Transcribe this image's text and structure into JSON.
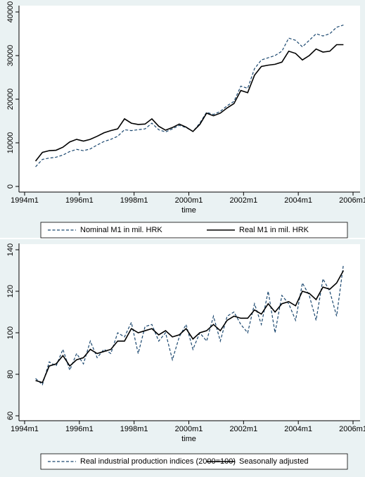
{
  "chart_data": [
    {
      "type": "line",
      "x_label": "time",
      "x": [
        1994.4,
        1994.65,
        1994.9,
        1995.15,
        1995.4,
        1995.65,
        1995.9,
        1996.15,
        1996.4,
        1996.65,
        1996.9,
        1997.15,
        1997.4,
        1997.65,
        1997.9,
        1998.15,
        1998.4,
        1998.65,
        1998.9,
        1999.15,
        1999.4,
        1999.65,
        1999.9,
        2000.15,
        2000.4,
        2000.65,
        2000.9,
        2001.15,
        2001.4,
        2001.65,
        2001.9,
        2002.15,
        2002.4,
        2002.65,
        2002.9,
        2003.15,
        2003.4,
        2003.65,
        2003.9,
        2004.15,
        2004.4,
        2004.65,
        2004.9,
        2005.15,
        2005.4,
        2005.65
      ],
      "series": [
        {
          "name": "Nominal M1 in mil. HRK",
          "color": "#1a476f",
          "dashed": true,
          "values": [
            4500,
            6200,
            6500,
            6700,
            7200,
            8000,
            8500,
            8200,
            8600,
            9500,
            10300,
            10800,
            11500,
            13000,
            12800,
            13000,
            13200,
            14500,
            13000,
            12500,
            13200,
            14000,
            13500,
            12600,
            14500,
            17000,
            16500,
            17200,
            18500,
            19500,
            23000,
            22500,
            27000,
            29000,
            29500,
            30000,
            31000,
            34000,
            33500,
            32000,
            33500,
            35000,
            34500,
            35000,
            36500,
            37000
          ]
        },
        {
          "name": "Real M1 in mil. HRK",
          "color": "#000000",
          "dashed": false,
          "values": [
            5800,
            7800,
            8200,
            8300,
            9000,
            10200,
            10800,
            10400,
            10800,
            11500,
            12300,
            12800,
            13200,
            15500,
            14500,
            14200,
            14300,
            15500,
            13800,
            12900,
            13500,
            14300,
            13600,
            12600,
            14200,
            16800,
            16200,
            16800,
            18000,
            19000,
            22000,
            21500,
            25500,
            27500,
            27800,
            28000,
            28500,
            31000,
            30500,
            29000,
            30000,
            31500,
            30800,
            31000,
            32500,
            32500
          ]
        }
      ],
      "xlim": [
        1994,
        2006
      ],
      "xticks": [
        {
          "value": 1994,
          "label": "1994m1"
        },
        {
          "value": 1996,
          "label": "1996m1"
        },
        {
          "value": 1998,
          "label": "1998m1"
        },
        {
          "value": 2000,
          "label": "2000m1"
        },
        {
          "value": 2002,
          "label": "2002m1"
        },
        {
          "value": 2004,
          "label": "2004m1"
        },
        {
          "value": 2006,
          "label": "2006m1"
        }
      ],
      "ylim": [
        0,
        40000
      ],
      "yticks": [
        0,
        10000,
        20000,
        30000,
        40000
      ]
    },
    {
      "type": "line",
      "x_label": "time",
      "x": [
        1994.4,
        1994.65,
        1994.9,
        1995.15,
        1995.4,
        1995.65,
        1995.9,
        1996.15,
        1996.4,
        1996.65,
        1996.9,
        1997.15,
        1997.4,
        1997.65,
        1997.9,
        1998.15,
        1998.4,
        1998.65,
        1998.9,
        1999.15,
        1999.4,
        1999.65,
        1999.9,
        2000.15,
        2000.4,
        2000.65,
        2000.9,
        2001.15,
        2001.4,
        2001.65,
        2001.9,
        2002.15,
        2002.4,
        2002.65,
        2002.9,
        2003.15,
        2003.4,
        2003.65,
        2003.9,
        2004.15,
        2004.4,
        2004.65,
        2004.9,
        2005.15,
        2005.4,
        2005.65
      ],
      "series": [
        {
          "name": "Real industrial production indices (2000=100)",
          "color": "#1a476f",
          "dashed": true,
          "values": [
            78,
            75,
            86,
            84,
            92,
            82,
            90,
            85,
            96,
            88,
            92,
            90,
            100,
            98,
            105,
            90,
            103,
            104,
            96,
            100,
            87,
            98,
            104,
            92,
            100,
            96,
            108,
            96,
            108,
            110,
            104,
            100,
            114,
            104,
            120,
            100,
            118,
            114,
            106,
            124,
            118,
            106,
            126,
            120,
            108,
            133
          ]
        },
        {
          "name": "Seasonally adjusted",
          "color": "#000000",
          "dashed": false,
          "values": [
            77,
            76,
            84,
            85,
            89,
            84,
            87,
            88,
            92,
            90,
            91,
            92,
            96,
            96,
            102,
            100,
            101,
            102,
            99,
            101,
            98,
            99,
            102,
            97,
            100,
            101,
            104,
            101,
            106,
            108,
            107,
            107,
            111,
            109,
            114,
            110,
            114,
            115,
            113,
            120,
            119,
            116,
            122,
            121,
            124,
            130
          ]
        }
      ],
      "xlim": [
        1994,
        2006
      ],
      "xticks": [
        {
          "value": 1994,
          "label": "1994m1"
        },
        {
          "value": 1996,
          "label": "1996m1"
        },
        {
          "value": 1998,
          "label": "1998m1"
        },
        {
          "value": 2000,
          "label": "2000m1"
        },
        {
          "value": 2002,
          "label": "2002m1"
        },
        {
          "value": 2004,
          "label": "2004m1"
        },
        {
          "value": 2006,
          "label": "2006m1"
        }
      ],
      "ylim": [
        60,
        140
      ],
      "yticks": [
        60,
        80,
        100,
        120,
        140
      ]
    }
  ]
}
